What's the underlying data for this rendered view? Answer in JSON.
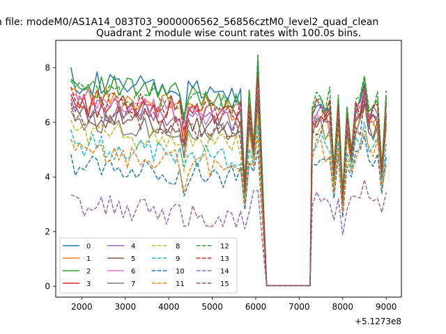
{
  "figure": {
    "suptitle": "n file: modeM0/AS1A14_083T03_9000006562_56856cztM0_level2_quad_clean",
    "title": "Quadrant 2 module wise count rates with 100.0s bins."
  },
  "chart_data": {
    "type": "line",
    "title": "Quadrant 2 module wise count rates with 100.0s bins.",
    "xlabel": "",
    "ylabel": "",
    "x_offset_label": "+5.1273e8",
    "x_offset": 512730000,
    "xlim": [
      1400,
      9350
    ],
    "ylim": [
      -0.4,
      9.0
    ],
    "xticks": [
      2000,
      3000,
      4000,
      5000,
      6000,
      7000,
      8000,
      9000
    ],
    "yticks": [
      0,
      2,
      4,
      6,
      8
    ],
    "grid": false,
    "legend_position": "lower-left",
    "legend_columns": 4,
    "series": [
      {
        "name": "0",
        "color": "#1f77b4",
        "style": "solid",
        "level": 7.5,
        "spike": 8.3,
        "dip": 3.6,
        "seg2": 6.6
      },
      {
        "name": "1",
        "color": "#ff7f0e",
        "style": "solid",
        "level": 7.0,
        "spike": 7.5,
        "dip": 3.4,
        "seg2": 6.1
      },
      {
        "name": "2",
        "color": "#2ca02c",
        "style": "solid",
        "level": 7.4,
        "spike": 8.0,
        "dip": 3.8,
        "seg2": 6.8
      },
      {
        "name": "3",
        "color": "#d62728",
        "style": "solid",
        "level": 6.7,
        "spike": 7.6,
        "dip": 3.5,
        "seg2": 6.3
      },
      {
        "name": "4",
        "color": "#9467bd",
        "style": "solid",
        "level": 6.6,
        "spike": 7.0,
        "dip": 3.5,
        "seg2": 6.2
      },
      {
        "name": "5",
        "color": "#8c564b",
        "style": "solid",
        "level": 6.3,
        "spike": 6.8,
        "dip": 3.3,
        "seg2": 5.9
      },
      {
        "name": "6",
        "color": "#e377c2",
        "style": "solid",
        "level": 6.8,
        "spike": 7.4,
        "dip": 3.5,
        "seg2": 6.4
      },
      {
        "name": "7",
        "color": "#7f7f7f",
        "style": "solid",
        "level": 6.1,
        "spike": 6.6,
        "dip": 3.3,
        "seg2": 5.8
      },
      {
        "name": "8",
        "color": "#bcbd22",
        "style": "dashed",
        "level": 5.7,
        "spike": 6.3,
        "dip": 3.1,
        "seg2": 5.7
      },
      {
        "name": "9",
        "color": "#17becf",
        "style": "dashed",
        "level": 5.2,
        "spike": 5.9,
        "dip": 3.0,
        "seg2": 5.2
      },
      {
        "name": "10",
        "color": "#1f77b4",
        "style": "dashed",
        "level": 4.5,
        "spike": 5.0,
        "dip": 2.8,
        "seg2": 4.7
      },
      {
        "name": "11",
        "color": "#ff7f0e",
        "style": "dashed",
        "level": 4.9,
        "spike": 5.5,
        "dip": 3.0,
        "seg2": 4.9
      },
      {
        "name": "12",
        "color": "#2ca02c",
        "style": "dashed",
        "level": 7.2,
        "spike": 8.5,
        "dip": 3.7,
        "seg2": 6.9
      },
      {
        "name": "13",
        "color": "#d62728",
        "style": "dashed",
        "level": 6.9,
        "spike": 7.7,
        "dip": 3.6,
        "seg2": 6.5
      },
      {
        "name": "14",
        "color": "#9467bd",
        "style": "dashed",
        "level": 3.0,
        "spike": 3.5,
        "dip": 2.1,
        "seg2": 3.1
      },
      {
        "name": "15",
        "color": "#8c564b",
        "style": "dashed",
        "level": 6.2,
        "spike": 7.0,
        "dip": 3.4,
        "seg2": 6.0
      }
    ]
  }
}
